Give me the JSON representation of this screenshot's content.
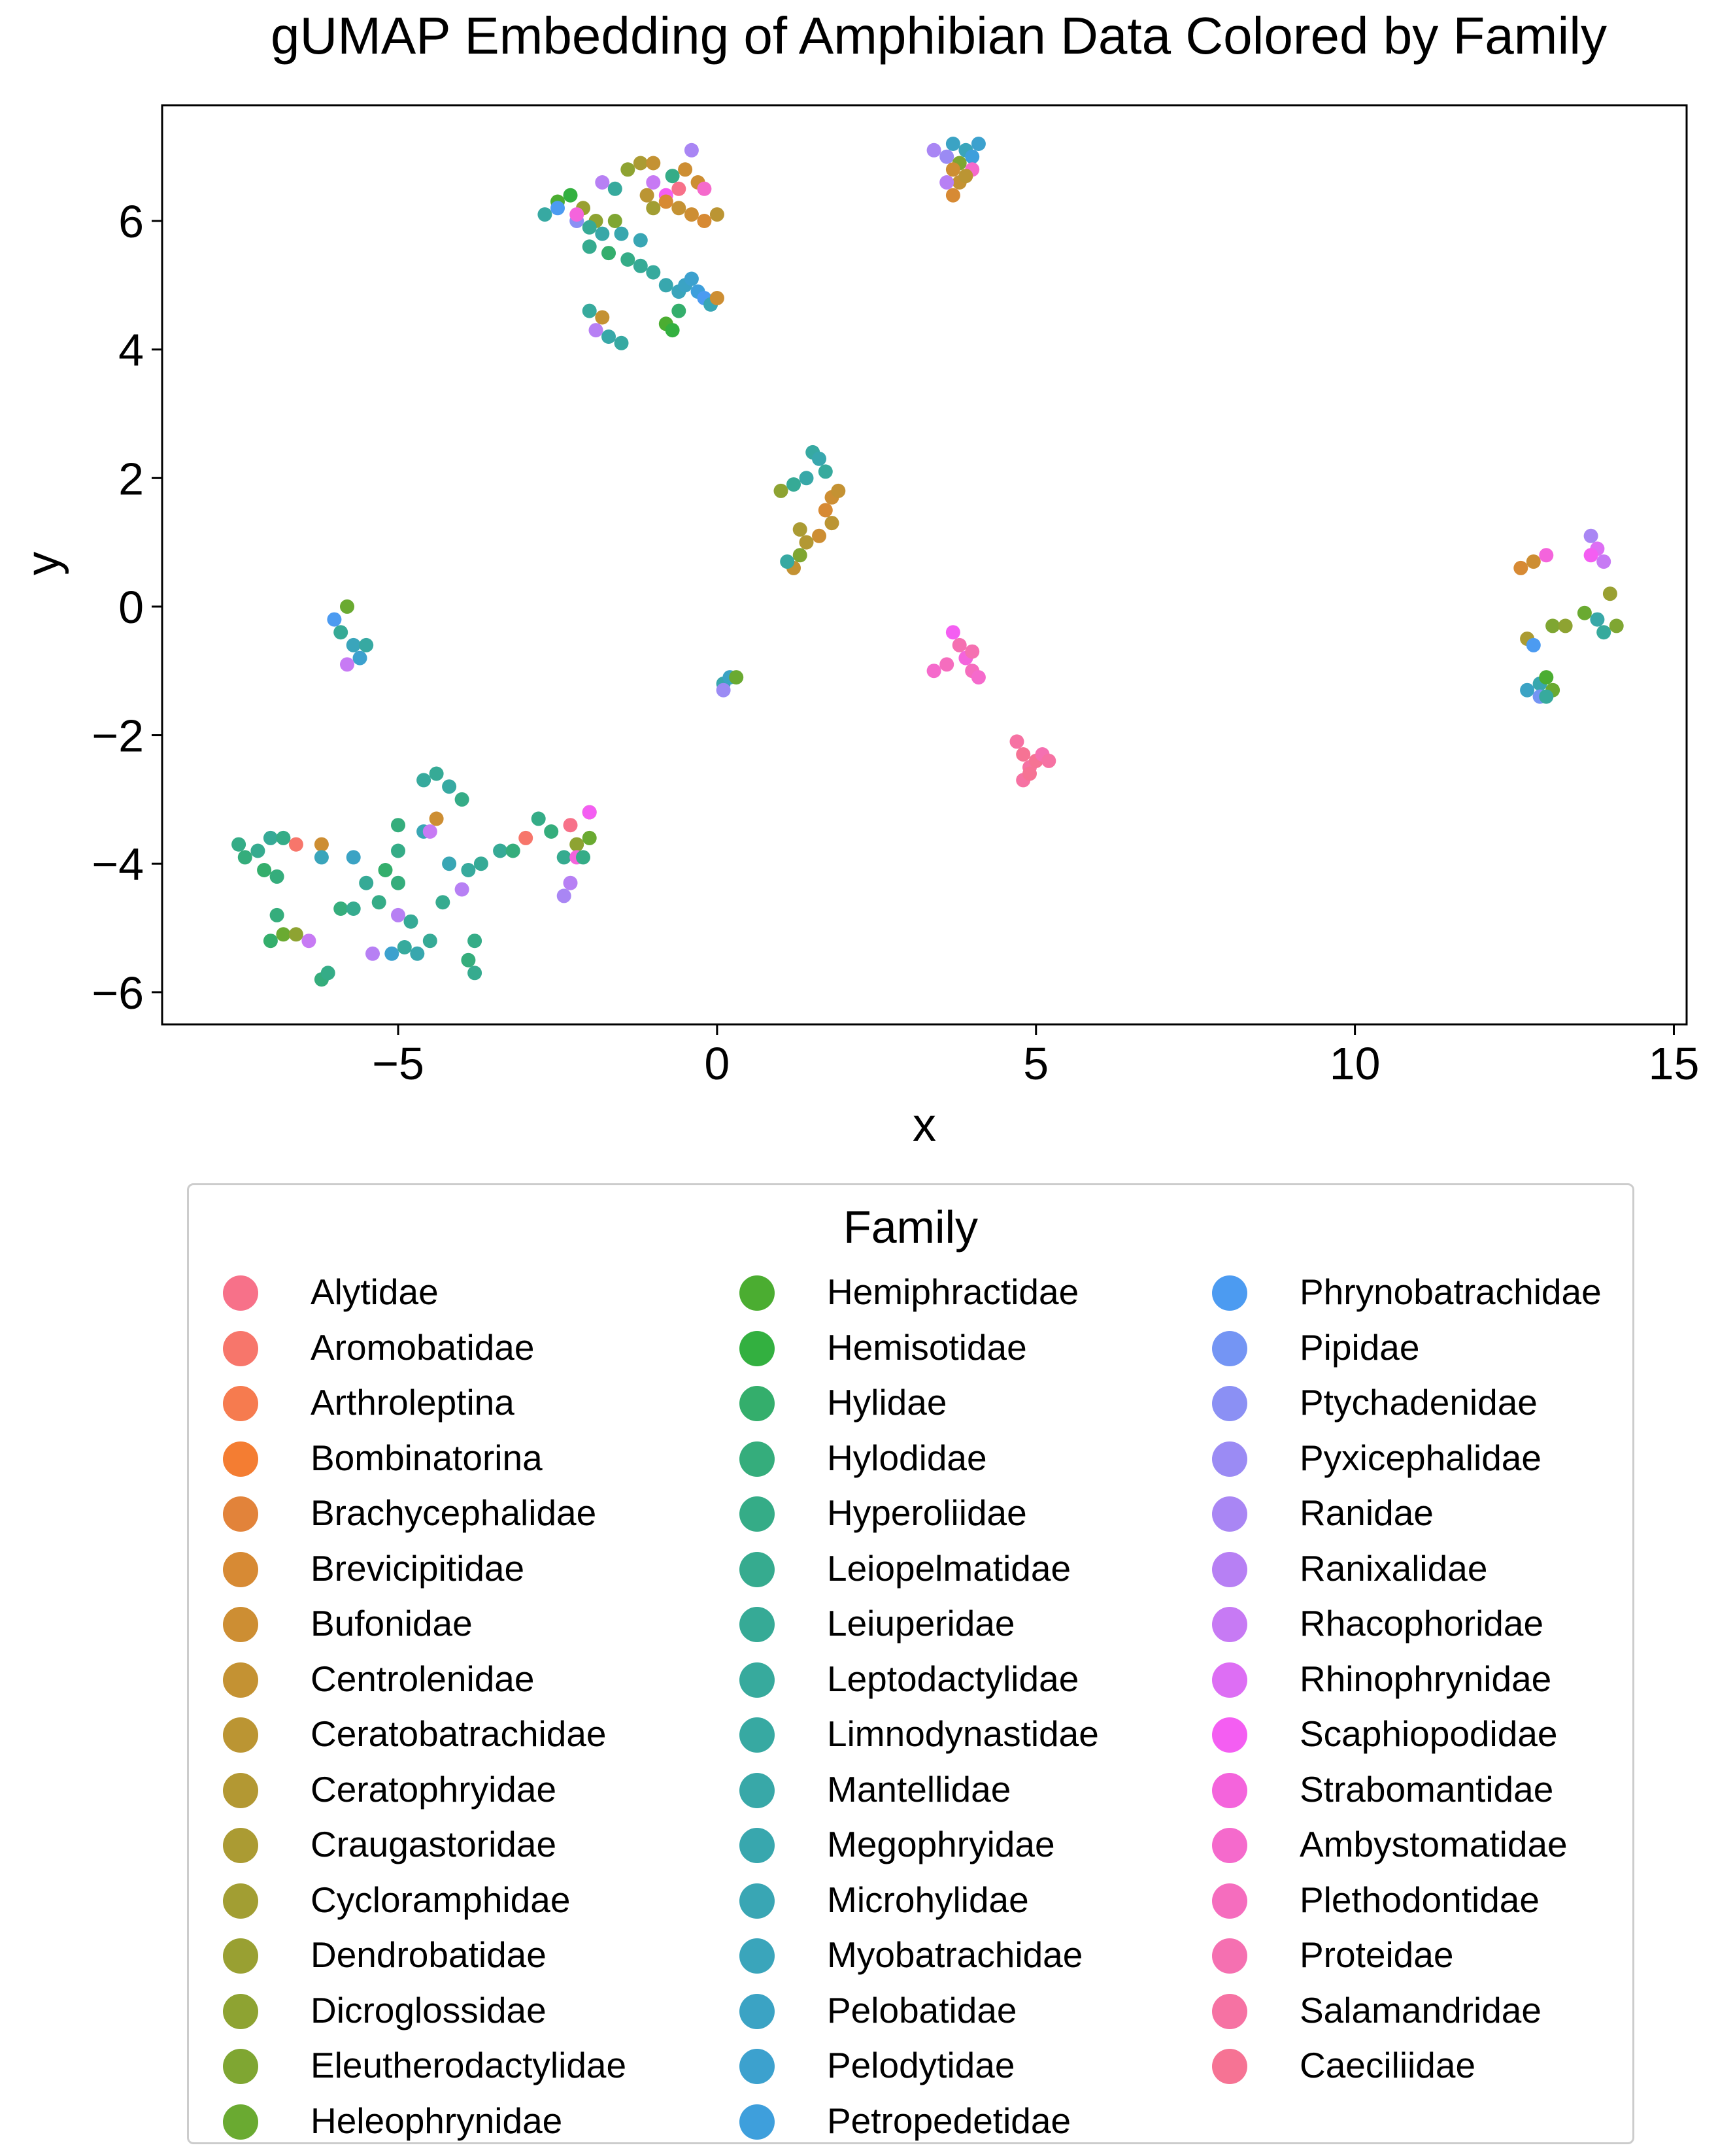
{
  "chart_data": {
    "type": "scatter",
    "title": "gUMAP Embedding of Amphibian Data Colored by Family",
    "xlabel": "x",
    "ylabel": "y",
    "xlim": [
      -8.7,
      15.2
    ],
    "ylim": [
      -6.5,
      7.8
    ],
    "xticks": [
      {
        "v": -5,
        "label": "−5"
      },
      {
        "v": 0,
        "label": "0"
      },
      {
        "v": 5,
        "label": "5"
      },
      {
        "v": 10,
        "label": "10"
      },
      {
        "v": 15,
        "label": "15"
      }
    ],
    "yticks": [
      {
        "v": -6,
        "label": "−6"
      },
      {
        "v": -4,
        "label": "−4"
      },
      {
        "v": -2,
        "label": "−2"
      },
      {
        "v": 0,
        "label": "0"
      },
      {
        "v": 2,
        "label": "2"
      },
      {
        "v": 4,
        "label": "4"
      },
      {
        "v": 6,
        "label": "6"
      }
    ],
    "grid": false,
    "legend_title": "Family",
    "legend_position": "below",
    "families": [
      {
        "name": "Alytidae",
        "color": "#f77189"
      },
      {
        "name": "Aromobatidae",
        "color": "#f7766b"
      },
      {
        "name": "Arthroleptina",
        "color": "#f67b4f"
      },
      {
        "name": "Bombinatorina",
        "color": "#f47d32"
      },
      {
        "name": "Brachycephalidae",
        "color": "#e2833a"
      },
      {
        "name": "Brevicipitidae",
        "color": "#d78a34"
      },
      {
        "name": "Bufonidae",
        "color": "#cd8e33"
      },
      {
        "name": "Centrolenidae",
        "color": "#c49233"
      },
      {
        "name": "Ceratobatrachidae",
        "color": "#bb9533"
      },
      {
        "name": "Ceratophryidae",
        "color": "#b39833"
      },
      {
        "name": "Craugastoridae",
        "color": "#ab9b33"
      },
      {
        "name": "Cycloramphidae",
        "color": "#a29e33"
      },
      {
        "name": "Dendrobatidae",
        "color": "#99a032"
      },
      {
        "name": "Dicroglossidae",
        "color": "#8ea332"
      },
      {
        "name": "Eleutherodactylidae",
        "color": "#7fa632"
      },
      {
        "name": "Heleophrynidae",
        "color": "#6aaa31"
      },
      {
        "name": "Hemiphractidae",
        "color": "#4bad31"
      },
      {
        "name": "Hemisotidae",
        "color": "#33b040"
      },
      {
        "name": "Hylidae",
        "color": "#34ae6c"
      },
      {
        "name": "Hylodidae",
        "color": "#35ad7c"
      },
      {
        "name": "Hyperoliidae",
        "color": "#35ac87"
      },
      {
        "name": "Leiopelmatidae",
        "color": "#36ab8f"
      },
      {
        "name": "Leiuperidae",
        "color": "#36aa96"
      },
      {
        "name": "Leptodactylidae",
        "color": "#37aa9d"
      },
      {
        "name": "Limnodynastidae",
        "color": "#37a9a2"
      },
      {
        "name": "Mantellidae",
        "color": "#38a8a8"
      },
      {
        "name": "Megophryidae",
        "color": "#38a7ae"
      },
      {
        "name": "Microhylidae",
        "color": "#39a6b4"
      },
      {
        "name": "Myobatrachidae",
        "color": "#3aa5bb"
      },
      {
        "name": "Pelobatidae",
        "color": "#3ba3c4"
      },
      {
        "name": "Pelodytidae",
        "color": "#3ca1ce"
      },
      {
        "name": "Petropedetidae",
        "color": "#3e9fdc"
      },
      {
        "name": "Phrynobatrachidae",
        "color": "#4c9bf1"
      },
      {
        "name": "Pipidae",
        "color": "#7495f4"
      },
      {
        "name": "Ptychadenidae",
        "color": "#8b90f4"
      },
      {
        "name": "Pyxicephalidae",
        "color": "#9b8bf4"
      },
      {
        "name": "Ranidae",
        "color": "#a986f4"
      },
      {
        "name": "Ranixalidae",
        "color": "#b780f4"
      },
      {
        "name": "Rhacophoridae",
        "color": "#c77af4"
      },
      {
        "name": "Rhinophrynidae",
        "color": "#dd6ef4"
      },
      {
        "name": "Scaphiopodidae",
        "color": "#f45ef2"
      },
      {
        "name": "Strabomantidae",
        "color": "#f464dc"
      },
      {
        "name": "Ambystomatidae",
        "color": "#f56acc"
      },
      {
        "name": "Plethodontidae",
        "color": "#f56dbe"
      },
      {
        "name": "Proteidae",
        "color": "#f570b1"
      },
      {
        "name": "Salamandridae",
        "color": "#f672a3"
      },
      {
        "name": "Caeciliidae",
        "color": "#f67394"
      }
    ],
    "clusters": [
      {
        "name": "upper-left",
        "points": [
          [
            -2.5,
            6.3,
            16
          ],
          [
            -2.3,
            6.4,
            17
          ],
          [
            -2.1,
            6.2,
            12
          ],
          [
            -2.7,
            6.1,
            24
          ],
          [
            -1.9,
            6.0,
            13
          ],
          [
            -1.6,
            6.0,
            14
          ],
          [
            -1.4,
            6.8,
            13
          ],
          [
            -1.2,
            6.9,
            10
          ],
          [
            -1.0,
            6.9,
            7
          ],
          [
            -0.7,
            6.7,
            20
          ],
          [
            -0.5,
            6.8,
            6
          ],
          [
            -0.4,
            7.1,
            36
          ],
          [
            -0.3,
            6.6,
            6
          ],
          [
            -0.6,
            6.5,
            0
          ],
          [
            -0.8,
            6.4,
            40
          ],
          [
            -1.0,
            6.2,
            11
          ],
          [
            -0.6,
            6.2,
            7
          ],
          [
            -0.4,
            6.1,
            6
          ],
          [
            -0.2,
            6.0,
            5
          ],
          [
            0.0,
            6.1,
            8
          ],
          [
            -2.5,
            6.2,
            32
          ],
          [
            -2.2,
            6.0,
            34
          ],
          [
            -1.8,
            6.6,
            37
          ],
          [
            -1.6,
            6.5,
            23
          ],
          [
            -2.0,
            5.9,
            22
          ],
          [
            -1.8,
            5.8,
            25
          ],
          [
            -1.5,
            5.8,
            26
          ],
          [
            -1.2,
            5.7,
            27
          ],
          [
            -2.0,
            5.6,
            21
          ],
          [
            -1.7,
            5.5,
            18
          ],
          [
            -1.4,
            5.4,
            20
          ],
          [
            -1.2,
            5.3,
            22
          ],
          [
            -1.0,
            5.2,
            23
          ],
          [
            -0.8,
            5.0,
            26
          ],
          [
            -0.6,
            4.9,
            28
          ],
          [
            -0.5,
            5.0,
            29
          ],
          [
            -0.4,
            5.1,
            30
          ],
          [
            -0.3,
            4.9,
            31
          ],
          [
            -0.2,
            4.8,
            32
          ],
          [
            -0.1,
            4.7,
            27
          ],
          [
            0.0,
            4.8,
            6
          ],
          [
            -0.8,
            6.3,
            5
          ],
          [
            -0.2,
            6.5,
            42
          ],
          [
            -1.0,
            6.6,
            38
          ],
          [
            -2.0,
            4.6,
            23
          ],
          [
            -1.8,
            4.5,
            7
          ],
          [
            -1.7,
            4.2,
            25
          ],
          [
            -1.5,
            4.1,
            24
          ],
          [
            -0.8,
            4.4,
            16
          ],
          [
            -0.7,
            4.3,
            17
          ],
          [
            -1.9,
            4.3,
            37
          ],
          [
            -0.6,
            4.6,
            18
          ],
          [
            -2.2,
            6.1,
            41
          ],
          [
            -1.1,
            6.4,
            8
          ]
        ]
      },
      {
        "name": "top-middle",
        "points": [
          [
            3.4,
            7.1,
            36
          ],
          [
            3.6,
            7.0,
            35
          ],
          [
            3.7,
            7.2,
            29
          ],
          [
            3.8,
            6.9,
            14
          ],
          [
            3.9,
            7.1,
            28
          ],
          [
            4.0,
            7.0,
            31
          ],
          [
            3.7,
            6.8,
            6
          ],
          [
            3.8,
            6.6,
            7
          ],
          [
            3.7,
            6.4,
            5
          ],
          [
            3.6,
            6.6,
            37
          ],
          [
            4.0,
            6.8,
            42
          ],
          [
            3.9,
            6.7,
            8
          ],
          [
            4.1,
            7.2,
            30
          ]
        ]
      },
      {
        "name": "center",
        "points": [
          [
            1.0,
            1.8,
            13
          ],
          [
            1.2,
            1.9,
            22
          ],
          [
            1.4,
            2.0,
            25
          ],
          [
            1.5,
            2.4,
            24
          ],
          [
            1.6,
            2.3,
            26
          ],
          [
            1.7,
            2.1,
            23
          ],
          [
            1.8,
            1.7,
            6
          ],
          [
            1.9,
            1.8,
            7
          ],
          [
            1.7,
            1.5,
            5
          ],
          [
            1.8,
            1.3,
            8
          ],
          [
            1.6,
            1.1,
            6
          ],
          [
            1.4,
            1.0,
            9
          ],
          [
            1.3,
            0.8,
            14
          ],
          [
            1.2,
            0.6,
            7
          ],
          [
            1.1,
            0.7,
            24
          ],
          [
            1.3,
            1.2,
            10
          ]
        ]
      },
      {
        "name": "left-small",
        "points": [
          [
            -6.0,
            -0.2,
            32
          ],
          [
            -5.8,
            0.0,
            15
          ],
          [
            -5.9,
            -0.4,
            22
          ],
          [
            -5.7,
            -0.6,
            28
          ],
          [
            -5.6,
            -0.8,
            30
          ],
          [
            -5.8,
            -0.9,
            38
          ],
          [
            -5.5,
            -0.6,
            24
          ]
        ]
      },
      {
        "name": "tiny-center",
        "points": [
          [
            0.1,
            -1.2,
            26
          ],
          [
            0.2,
            -1.1,
            29
          ],
          [
            0.3,
            -1.1,
            15
          ],
          [
            0.1,
            -1.3,
            35
          ]
        ]
      },
      {
        "name": "pink-1",
        "points": [
          [
            3.4,
            -1.0,
            42
          ],
          [
            3.6,
            -0.9,
            43
          ],
          [
            3.8,
            -0.6,
            44
          ],
          [
            3.7,
            -0.4,
            40
          ],
          [
            3.9,
            -0.8,
            41
          ],
          [
            4.0,
            -1.0,
            43
          ],
          [
            4.1,
            -1.1,
            42
          ],
          [
            4.0,
            -0.7,
            44
          ]
        ]
      },
      {
        "name": "pink-2",
        "points": [
          [
            4.7,
            -2.1,
            45
          ],
          [
            4.8,
            -2.3,
            46
          ],
          [
            4.9,
            -2.5,
            45
          ],
          [
            5.0,
            -2.4,
            46
          ],
          [
            5.1,
            -2.3,
            44
          ],
          [
            4.8,
            -2.7,
            45
          ],
          [
            4.9,
            -2.6,
            46
          ],
          [
            5.2,
            -2.4,
            45
          ]
        ]
      },
      {
        "name": "right",
        "points": [
          [
            12.6,
            0.6,
            5
          ],
          [
            12.8,
            0.7,
            6
          ],
          [
            13.0,
            0.8,
            41
          ],
          [
            13.7,
            1.1,
            36
          ],
          [
            13.8,
            0.9,
            39
          ],
          [
            13.9,
            0.7,
            38
          ],
          [
            13.7,
            0.8,
            40
          ],
          [
            12.7,
            -0.5,
            10
          ],
          [
            12.8,
            -0.6,
            32
          ],
          [
            13.1,
            -0.3,
            14
          ],
          [
            13.3,
            -0.3,
            13
          ],
          [
            13.6,
            -0.1,
            15
          ],
          [
            13.8,
            -0.2,
            25
          ],
          [
            13.9,
            -0.4,
            23
          ],
          [
            14.0,
            0.2,
            12
          ],
          [
            14.1,
            -0.3,
            14
          ],
          [
            12.7,
            -1.3,
            29
          ],
          [
            12.9,
            -1.2,
            26
          ],
          [
            13.0,
            -1.1,
            16
          ],
          [
            13.1,
            -1.3,
            15
          ],
          [
            12.9,
            -1.4,
            33
          ],
          [
            13.0,
            -1.4,
            23
          ]
        ]
      },
      {
        "name": "lower-left",
        "points": [
          [
            -7.5,
            -3.7,
            20
          ],
          [
            -7.4,
            -3.9,
            19
          ],
          [
            -7.2,
            -3.8,
            21
          ],
          [
            -7.0,
            -3.6,
            22
          ],
          [
            -6.8,
            -3.6,
            20
          ],
          [
            -6.6,
            -3.7,
            1
          ],
          [
            -6.2,
            -3.7,
            6
          ],
          [
            -6.9,
            -4.2,
            19
          ],
          [
            -7.1,
            -4.1,
            18
          ],
          [
            -6.9,
            -4.8,
            19
          ],
          [
            -7.0,
            -5.2,
            18
          ],
          [
            -6.8,
            -5.1,
            15
          ],
          [
            -6.6,
            -5.1,
            13
          ],
          [
            -6.4,
            -5.2,
            38
          ],
          [
            -6.2,
            -5.8,
            19
          ],
          [
            -6.1,
            -5.7,
            20
          ],
          [
            -5.9,
            -4.7,
            19
          ],
          [
            -5.7,
            -4.7,
            21
          ],
          [
            -5.5,
            -4.3,
            22
          ],
          [
            -5.2,
            -4.1,
            18
          ],
          [
            -5.0,
            -4.3,
            19
          ],
          [
            -5.3,
            -4.6,
            20
          ],
          [
            -5.0,
            -4.8,
            37
          ],
          [
            -4.8,
            -4.9,
            22
          ],
          [
            -4.9,
            -5.3,
            23
          ],
          [
            -4.7,
            -5.4,
            26
          ],
          [
            -4.5,
            -5.2,
            22
          ],
          [
            -4.3,
            -4.6,
            21
          ],
          [
            -4.0,
            -4.4,
            37
          ],
          [
            -4.2,
            -4.0,
            27
          ],
          [
            -3.9,
            -4.1,
            23
          ],
          [
            -3.7,
            -4.0,
            22
          ],
          [
            -3.8,
            -5.2,
            20
          ],
          [
            -3.9,
            -5.5,
            19
          ],
          [
            -3.8,
            -5.7,
            21
          ],
          [
            -4.6,
            -3.5,
            27
          ],
          [
            -4.4,
            -3.3,
            6
          ],
          [
            -4.6,
            -2.7,
            23
          ],
          [
            -4.4,
            -2.6,
            22
          ],
          [
            -4.2,
            -2.8,
            24
          ],
          [
            -4.0,
            -3.0,
            20
          ],
          [
            -3.4,
            -3.8,
            22
          ],
          [
            -3.2,
            -3.8,
            19
          ],
          [
            -3.0,
            -3.6,
            1
          ],
          [
            -2.8,
            -3.3,
            20
          ],
          [
            -2.6,
            -3.5,
            19
          ],
          [
            -2.4,
            -3.9,
            21
          ],
          [
            -2.2,
            -3.7,
            13
          ],
          [
            -2.0,
            -3.6,
            15
          ],
          [
            -2.0,
            -3.2,
            14
          ],
          [
            -2.3,
            -3.4,
            0
          ],
          [
            -2.2,
            -3.9,
            41
          ],
          [
            -2.3,
            -4.3,
            37
          ],
          [
            -2.4,
            -4.5,
            36
          ],
          [
            -2.1,
            -3.9,
            20
          ],
          [
            -2.0,
            -3.2,
            40
          ],
          [
            -5.4,
            -5.4,
            37
          ],
          [
            -5.1,
            -5.4,
            30
          ],
          [
            -5.0,
            -3.8,
            20
          ],
          [
            -5.0,
            -3.4,
            19
          ],
          [
            -6.2,
            -3.9,
            28
          ],
          [
            -5.7,
            -3.9,
            29
          ],
          [
            -4.5,
            -3.5,
            38
          ]
        ]
      }
    ]
  }
}
